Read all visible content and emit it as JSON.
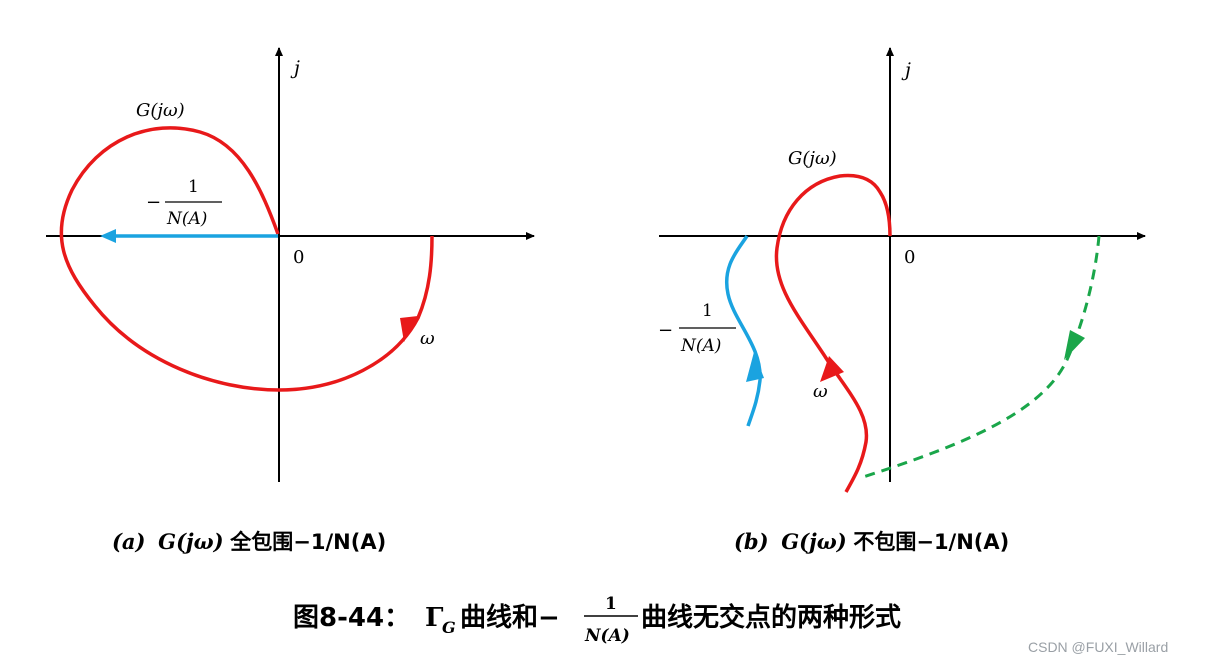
{
  "panel_a": {
    "axis_j": "j",
    "origin": "0",
    "curve_label": "G(jω)",
    "neg_sign": "−",
    "frac_num": "1",
    "frac_den": "N(A)",
    "omega": "ω",
    "caption_tag": "(a)",
    "caption_g": "G(jω)",
    "caption_text": "全包围−1/N(A)",
    "colors": {
      "g_curve": "#e8191a",
      "n_curve": "#1aa3e0"
    }
  },
  "panel_b": {
    "axis_j": "j",
    "origin": "0",
    "curve_label": "G(jω)",
    "neg_sign": "−",
    "frac_num": "1",
    "frac_den": "N(A)",
    "omega": "ω",
    "caption_tag": "(b)",
    "caption_g": "G(jω)",
    "caption_text": "不包围−1/N(A)",
    "colors": {
      "g_curve": "#e8191a",
      "n_curve": "#1aa3e0",
      "dashed": "#1aa64a"
    }
  },
  "title": {
    "prefix": "图8-44：",
    "gamma": "Γ",
    "gamma_sub": "G",
    "mid": "曲线和−",
    "frac_num": "1",
    "frac_den": "N(A)",
    "suffix": "曲线无交点的两种形式"
  },
  "watermark": "CSDN @FUXI_Willard"
}
